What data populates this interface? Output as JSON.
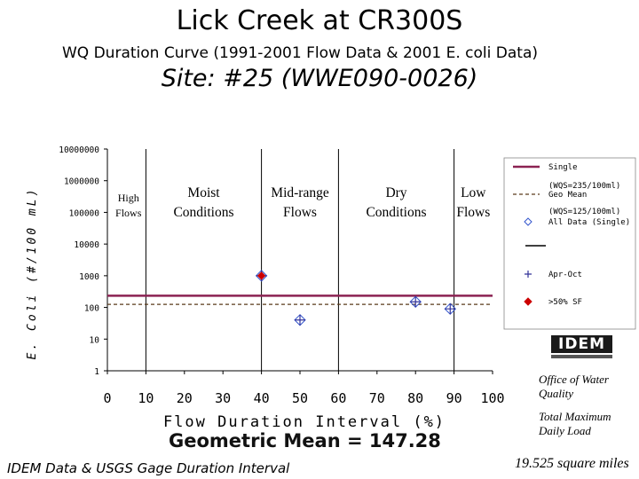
{
  "title": "Lick Creek at CR300S",
  "subtitle": "WQ Duration Curve  (1991-2001 Flow Data & 2001 E. coli Data)",
  "site": "Site:  #25 (WWE090-0026)",
  "geometric_mean_text": "Geometric Mean = 147.28",
  "source": "IDEM Data & USGS Gage Duration Interval",
  "logo_text": "IDEM",
  "office": "Office of Water Quality",
  "tmdl": "Total Maximum Daily Load",
  "area": "19.525 square miles",
  "colors": {
    "single_line": "#8b2252",
    "geo_line": "#5a3a1a",
    "all_data_marker": "#3355cc",
    "apr_oct_marker": "#333399",
    "over50_marker": "#cc0000"
  },
  "chart_data": {
    "type": "scatter",
    "xlabel": "Flow Duration Interval (%)",
    "ylabel": "E. Coli (#/100 mL)",
    "xlim": [
      0,
      100
    ],
    "ylim": [
      1,
      10000000
    ],
    "yscale": "log",
    "xticks": [
      "0",
      "10",
      "20",
      "30",
      "40",
      "50",
      "60",
      "70",
      "80",
      "90",
      "100"
    ],
    "yticks": [
      "10000000",
      "1000000",
      "100000",
      "10000",
      "1000",
      "100",
      "10",
      "1"
    ],
    "zone_boundaries": [
      10,
      40,
      60,
      90
    ],
    "zones": [
      {
        "label": "High Flows",
        "x": 5
      },
      {
        "label": "Moist Conditions",
        "x": 25
      },
      {
        "label": "Mid-range Flows",
        "x": 50
      },
      {
        "label": "Dry Conditions",
        "x": 75
      },
      {
        "label": "Low Flows",
        "x": 95
      }
    ],
    "reference_lines": [
      {
        "name": "Single",
        "y": 235
      },
      {
        "name": "Geo Mean",
        "y": 125
      }
    ],
    "series": [
      {
        "name": "All Data (Single)",
        "marker": "diamond",
        "points": [
          [
            40,
            1000
          ],
          [
            50,
            40
          ],
          [
            80,
            150
          ],
          [
            89,
            90
          ]
        ]
      },
      {
        "name": "Apr-Oct",
        "marker": "plus",
        "points": [
          [
            40,
            1000
          ],
          [
            50,
            40
          ],
          [
            80,
            150
          ],
          [
            89,
            90
          ]
        ]
      },
      {
        "name": ">50% SF",
        "marker": "filled-diamond",
        "points": [
          [
            40,
            1000
          ]
        ]
      }
    ],
    "legend": {
      "position": "right",
      "items": [
        {
          "label": "Single",
          "desc": "(WQS=235/100ml)",
          "kind": "line-single"
        },
        {
          "label": "Geo Mean",
          "desc": "(WQS=125/100ml)",
          "kind": "line-geo"
        },
        {
          "label": "All Data (Single)",
          "desc": "",
          "kind": "diamond"
        },
        {
          "label": "Apr-Oct",
          "desc": "",
          "kind": "plus"
        },
        {
          "label": ">50% SF",
          "desc": "",
          "kind": "filled-diamond"
        }
      ]
    },
    "grid": false
  }
}
